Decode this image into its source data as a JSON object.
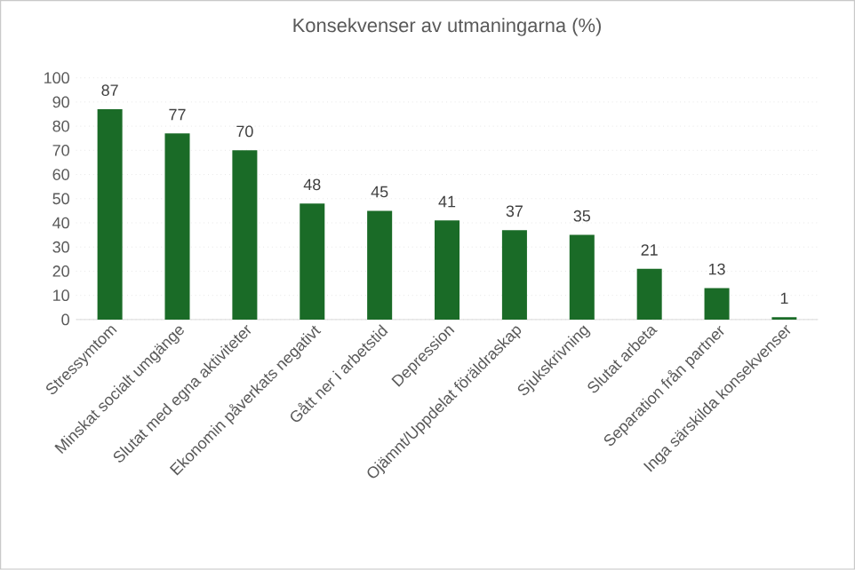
{
  "chart_data": {
    "type": "bar",
    "title": "Konsekvenser av utmaningarna (%)",
    "categories": [
      "Stressymtom",
      "Minskat socialt umgänge",
      "Slutat med egna aktiviteter",
      "Ekonomin påverkats negativt",
      "Gått ner i arbetstid",
      "Depression",
      "Ojämnt/Uppdelat föräldraskap",
      "Sjukskrivning",
      "Slutat arbeta",
      "Separation från partner",
      "Inga särskilda konsekvenser"
    ],
    "values": [
      87,
      77,
      70,
      48,
      45,
      41,
      37,
      35,
      21,
      13,
      1
    ],
    "color": "#1a6b27",
    "ylim": [
      0,
      100
    ],
    "yticks": [
      0,
      10,
      20,
      30,
      40,
      50,
      60,
      70,
      80,
      90,
      100
    ],
    "grid": "y",
    "data_labels": true
  }
}
